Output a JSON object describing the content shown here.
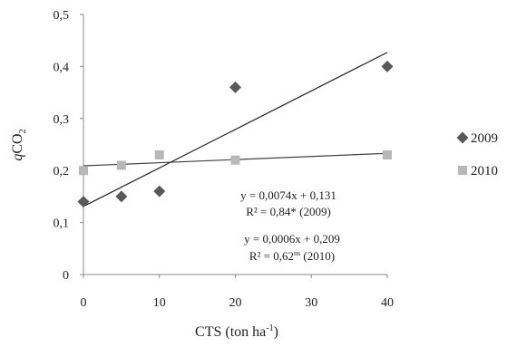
{
  "chart_data": {
    "type": "scatter",
    "xlabel": "CTS (ton ha",
    "xlabel_sup": "-1",
    "xlabel_close": ")",
    "ylabel_q": "q",
    "ylabel_co": "CO",
    "ylabel_sub": "2",
    "xlim": [
      0,
      40
    ],
    "ylim": [
      0,
      0.5
    ],
    "x_ticks": [
      0,
      10,
      20,
      30,
      40
    ],
    "y_ticks": [
      0,
      0.1,
      0.2,
      0.3,
      0.4,
      0.5
    ],
    "x_tick_labels": [
      "0",
      "10",
      "20",
      "30",
      "40"
    ],
    "y_tick_labels": [
      "0",
      "0,1",
      "0,2",
      "0,3",
      "0,4",
      "0,5"
    ],
    "grid": false,
    "legend_position": "right",
    "series": [
      {
        "name": "2009",
        "marker": "diamond",
        "color": "#595959",
        "points": [
          {
            "x": 0,
            "y": 0.14
          },
          {
            "x": 5,
            "y": 0.15
          },
          {
            "x": 10,
            "y": 0.16
          },
          {
            "x": 20,
            "y": 0.36
          },
          {
            "x": 40,
            "y": 0.4
          }
        ],
        "trendline": {
          "slope": 0.0074,
          "intercept": 0.131,
          "color": "#222222"
        }
      },
      {
        "name": "2010",
        "marker": "square",
        "color": "#b8b8b8",
        "points": [
          {
            "x": 0,
            "y": 0.2
          },
          {
            "x": 5,
            "y": 0.21
          },
          {
            "x": 10,
            "y": 0.23
          },
          {
            "x": 20,
            "y": 0.22
          },
          {
            "x": 40,
            "y": 0.23
          }
        ],
        "trendline": {
          "slope": 0.0006,
          "intercept": 0.209,
          "color": "#444444"
        }
      }
    ],
    "annotations": {
      "eq_2009": "y = 0,0074x + 0,131",
      "r2_2009_prefix": "R² = 0,84*",
      "r2_2009_suffix": " (2009)",
      "eq_2010": "y = 0,0006x + 0,209",
      "r2_2010_prefix": "R² = 0,62",
      "r2_2010_sup": "ns",
      "r2_2010_suffix": " (2010)"
    }
  }
}
